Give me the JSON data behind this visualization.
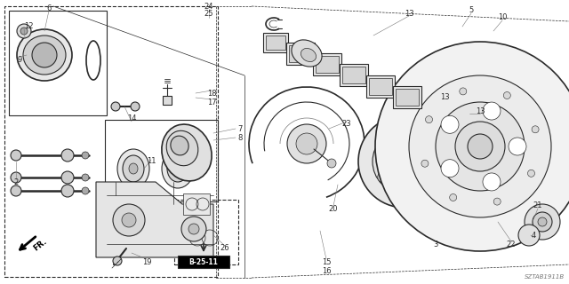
{
  "bg_color": "#ffffff",
  "diagram_ref": "SZTAB1911B",
  "gray": "#2a2a2a",
  "lgray": "#777777",
  "fig_w": 6.4,
  "fig_h": 3.2,
  "dpi": 100
}
